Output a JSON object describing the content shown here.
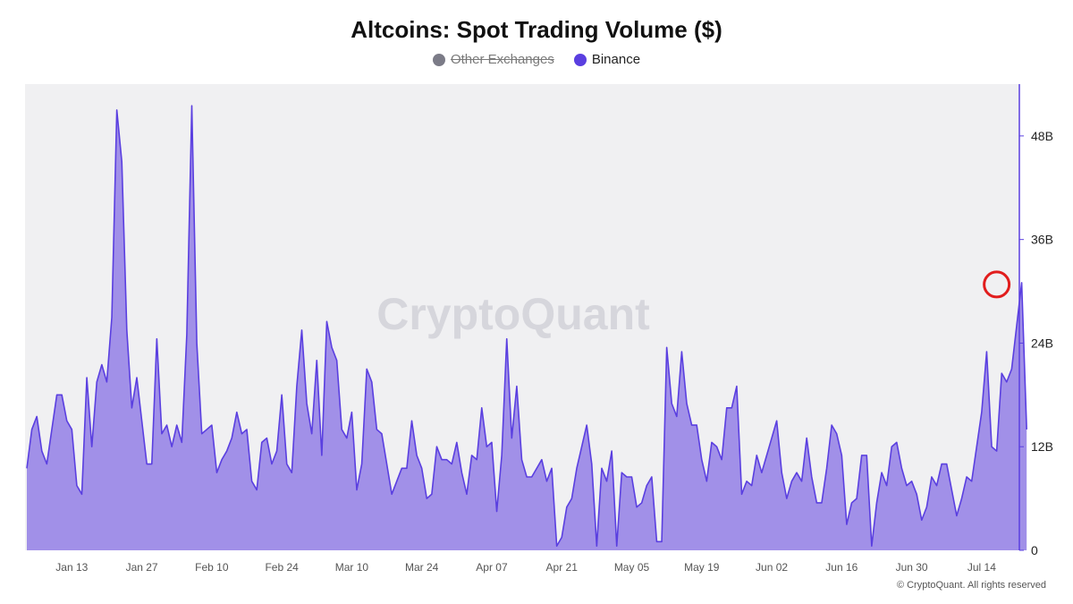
{
  "chart_data": {
    "type": "area",
    "title": "Altcoins: Spot Trading Volume ($)",
    "legend": [
      {
        "name": "Other Exchanges",
        "color": "#7b7b87",
        "hidden": true
      },
      {
        "name": "Binance",
        "color": "#5a3fe0",
        "hidden": false
      }
    ],
    "legend_position": "top-center",
    "watermark": "CryptoQuant",
    "footer": "© CryptoQuant. All rights reserved",
    "y_axis": {
      "position": "right",
      "min": 0,
      "max": 54,
      "ticks": [
        0,
        12,
        24,
        36,
        48
      ],
      "tick_labels": [
        "0",
        "12B",
        "24B",
        "36B",
        "48B"
      ],
      "unit": "B"
    },
    "x_axis": {
      "min": "2025-01-04",
      "max": "2025-07-21",
      "tick_dates": [
        "2025-01-13",
        "2025-01-27",
        "2025-02-10",
        "2025-02-24",
        "2025-03-10",
        "2025-03-24",
        "2025-04-07",
        "2025-04-21",
        "2025-05-05",
        "2025-05-19",
        "2025-06-02",
        "2025-06-16",
        "2025-06-30",
        "2025-07-14"
      ],
      "tick_labels": [
        "Jan 13",
        "Jan 27",
        "Feb 10",
        "Feb 24",
        "Mar 10",
        "Mar 24",
        "Apr 07",
        "Apr 21",
        "May 05",
        "May 19",
        "Jun 02",
        "Jun 16",
        "Jun 30",
        "Jul 14"
      ]
    },
    "grid": false,
    "highlight": {
      "date": "2025-07-17",
      "value": 31,
      "color": "#e11d1d"
    },
    "series": [
      {
        "name": "Binance",
        "color": "#5a3fe0",
        "fill": "#a190e8",
        "x_start": "2025-01-04",
        "values": [
          9.5,
          14,
          15.5,
          11.5,
          10,
          14,
          18,
          18,
          15,
          14,
          7.5,
          6.5,
          20,
          12,
          19.5,
          21.5,
          19.5,
          27,
          51,
          45,
          25.5,
          16.5,
          20,
          15,
          10,
          10,
          24.5,
          13.5,
          14.5,
          12,
          14.5,
          12.5,
          25,
          51.5,
          24,
          13.5,
          14,
          14.5,
          9,
          10.5,
          11.5,
          13,
          16,
          13.5,
          14,
          8,
          7,
          12.5,
          13,
          10,
          11.5,
          18,
          10,
          9,
          19,
          25.5,
          17,
          13.5,
          22,
          11,
          26.5,
          23.5,
          22,
          14,
          13,
          16,
          7,
          10,
          21,
          19.5,
          14,
          13.5,
          10,
          6.5,
          8,
          9.5,
          9.5,
          15,
          11,
          9.5,
          6,
          6.5,
          12,
          10.5,
          10.5,
          10,
          12.5,
          9,
          6.5,
          11,
          10.5,
          16.5,
          12,
          12.5,
          4.5,
          11,
          24.5,
          13,
          19,
          10.5,
          8.5,
          8.5,
          9.5,
          10.5,
          8,
          9.5,
          0.5,
          1.5,
          5,
          6,
          9.5,
          12,
          14.5,
          10,
          0.5,
          9.5,
          8,
          11.5,
          0.5,
          9,
          8.5,
          8.5,
          5,
          5.5,
          7.5,
          8.5,
          1,
          1,
          23.5,
          17,
          15.5,
          23,
          17,
          14.5,
          14.5,
          10.5,
          8,
          12.5,
          12,
          10.5,
          16.5,
          16.5,
          19,
          6.5,
          8,
          7.5,
          11,
          9,
          11,
          13,
          15,
          9,
          6,
          8,
          9,
          8,
          13,
          8.5,
          5.5,
          5.5,
          9.5,
          14.5,
          13.5,
          11,
          3,
          5.5,
          6,
          11,
          11,
          0.5,
          5.5,
          9,
          7.5,
          12,
          12.5,
          9.5,
          7.5,
          8,
          6.5,
          3.5,
          5,
          8.5,
          7.5,
          10,
          10,
          7,
          4,
          6,
          8.5,
          8,
          12,
          16,
          23,
          12,
          11.5,
          20.5,
          19.5,
          21,
          26,
          31,
          14
        ]
      }
    ]
  }
}
